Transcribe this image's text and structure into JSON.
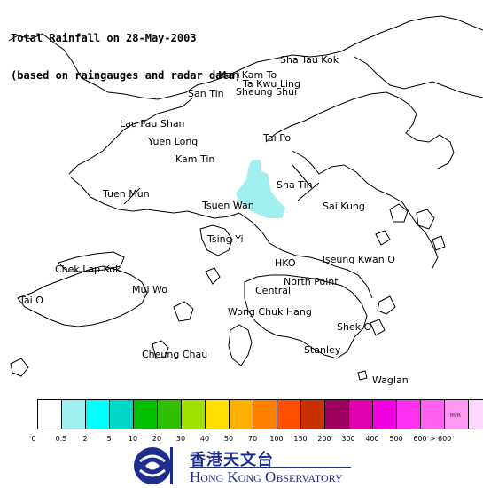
{
  "title": {
    "line1": "Total Rainfall on 28-May-2003",
    "line2": "(based on raingauges and radar data)"
  },
  "places": [
    {
      "id": "sha-tau-kok",
      "label": "Sha Tau Kok"
    },
    {
      "id": "man-kam-to",
      "label": "Man Kam To"
    },
    {
      "id": "ta-kwu-ling",
      "label": "Ta Kwu Ling"
    },
    {
      "id": "san-tin",
      "label": "San Tin"
    },
    {
      "id": "sheung-shui",
      "label": "Sheung Shui"
    },
    {
      "id": "lau-fau-shan",
      "label": "Lau Fau Shan"
    },
    {
      "id": "yuen-long",
      "label": "Yuen Long"
    },
    {
      "id": "tai-po",
      "label": "Tai Po"
    },
    {
      "id": "kam-tin",
      "label": "Kam Tin"
    },
    {
      "id": "sha-tin",
      "label": "Sha Tin"
    },
    {
      "id": "tuen-mun",
      "label": "Tuen Mun"
    },
    {
      "id": "tsuen-wan",
      "label": "Tsuen Wan"
    },
    {
      "id": "sai-kung",
      "label": "Sai Kung"
    },
    {
      "id": "tsing-yi",
      "label": "Tsing Yi"
    },
    {
      "id": "chek-lap-kok",
      "label": "Chek Lap Kok"
    },
    {
      "id": "hko",
      "label": "HKO"
    },
    {
      "id": "tseung-kwan-o",
      "label": "Tseung Kwan O"
    },
    {
      "id": "mui-wo",
      "label": "Mui Wo"
    },
    {
      "id": "north-point",
      "label": "North Point"
    },
    {
      "id": "central",
      "label": "Central"
    },
    {
      "id": "tai-o",
      "label": "Tai O"
    },
    {
      "id": "wong-chuk-hang",
      "label": "Wong Chuk Hang"
    },
    {
      "id": "shek-o",
      "label": "Shek O"
    },
    {
      "id": "stanley",
      "label": "Stanley"
    },
    {
      "id": "cheung-chau",
      "label": "Cheung Chau"
    },
    {
      "id": "waglan",
      "label": "Waglan"
    }
  ],
  "rain_area": {
    "range": "0.5-2",
    "color": "#a0f0f0"
  },
  "legend": {
    "unit": "mm",
    "colors": [
      "#ffffff",
      "#a0f0f0",
      "#00ffff",
      "#00d8c8",
      "#00c000",
      "#30c000",
      "#a0e000",
      "#ffe000",
      "#ffb000",
      "#ff8000",
      "#ff5000",
      "#c83000",
      "#a00060",
      "#e000b0",
      "#f000e0",
      "#ff30f0",
      "#ff60f0",
      "#ff98f0",
      "#ffd8ff"
    ],
    "ticks": [
      "0",
      "0.5",
      "2",
      "5",
      "10",
      "20",
      "30",
      "40",
      "50",
      "70",
      "100",
      "150",
      "200",
      "300",
      "400",
      "500",
      "600",
      "> 600"
    ]
  },
  "logo": {
    "chinese": "香港天文台",
    "english": "Hong Kong Observatory",
    "brand_color": "#1e2e8c"
  }
}
